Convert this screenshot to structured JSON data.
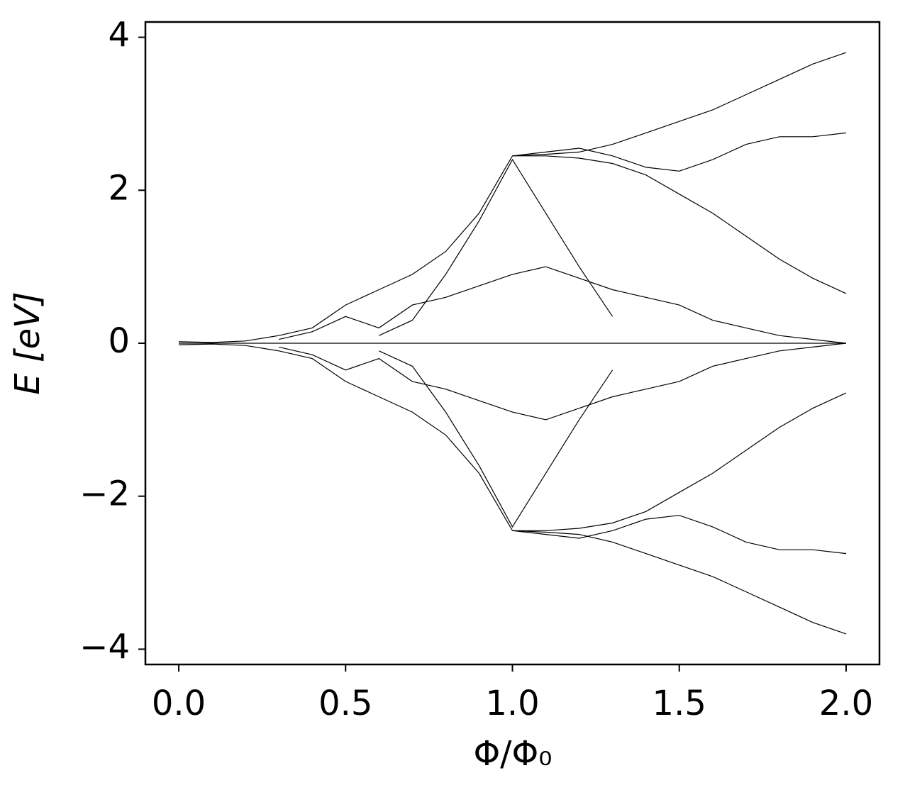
{
  "chart_data": {
    "type": "line",
    "xlabel": "Φ/Φ₀",
    "ylabel": "E [eV]",
    "x": [
      0,
      0.1,
      0.2,
      0.3,
      0.4,
      0.5,
      0.6,
      0.7,
      0.8,
      0.9,
      1.0,
      1.1,
      1.2,
      1.3,
      1.4,
      1.5,
      1.6,
      1.7,
      1.8,
      1.9,
      2.0
    ],
    "series": [
      {
        "color": "#000000",
        "values": [
          0.02,
          0.01,
          0.03,
          0.1,
          0.2,
          0.5,
          0.7,
          0.9,
          1.2,
          1.7,
          2.45,
          2.47,
          2.5,
          2.6,
          2.75,
          2.9,
          3.05,
          3.25,
          3.45,
          3.65,
          3.8
        ]
      },
      {
        "color": "#000000",
        "values": [
          -0.02,
          -0.01,
          -0.03,
          -0.1,
          -0.2,
          -0.5,
          -0.7,
          -0.9,
          -1.2,
          -1.7,
          -2.45,
          -2.47,
          -2.5,
          -2.6,
          -2.75,
          -2.9,
          -3.05,
          -3.25,
          -3.45,
          -3.65,
          -3.8
        ]
      },
      {
        "color": "#000000",
        "values": [
          null,
          null,
          null,
          null,
          null,
          null,
          0.1,
          0.3,
          0.9,
          1.6,
          2.4,
          1.7,
          1.0,
          0.35,
          null,
          null,
          null,
          null,
          null,
          null,
          null
        ]
      },
      {
        "color": "#000000",
        "values": [
          null,
          null,
          null,
          null,
          null,
          null,
          -0.1,
          -0.3,
          -0.9,
          -1.6,
          -2.4,
          -1.7,
          -1.0,
          -0.35,
          null,
          null,
          null,
          null,
          null,
          null,
          null
        ]
      },
      {
        "color": "#000000",
        "values": [
          null,
          null,
          null,
          null,
          null,
          null,
          null,
          null,
          null,
          null,
          2.45,
          2.45,
          2.42,
          2.35,
          2.2,
          1.95,
          1.7,
          1.4,
          1.1,
          0.85,
          0.65
        ]
      },
      {
        "color": "#000000",
        "values": [
          null,
          null,
          null,
          null,
          null,
          null,
          null,
          null,
          null,
          null,
          -2.45,
          -2.45,
          -2.42,
          -2.35,
          -2.2,
          -1.95,
          -1.7,
          -1.4,
          -1.1,
          -0.85,
          -0.65
        ]
      },
      {
        "color": "#000000",
        "values": [
          null,
          null,
          null,
          null,
          null,
          null,
          null,
          null,
          null,
          null,
          2.45,
          2.5,
          2.55,
          2.45,
          2.3,
          2.25,
          2.4,
          2.6,
          2.7,
          2.7,
          2.75
        ]
      },
      {
        "color": "#000000",
        "values": [
          null,
          null,
          null,
          null,
          null,
          null,
          null,
          null,
          null,
          null,
          -2.45,
          -2.5,
          -2.55,
          -2.45,
          -2.3,
          -2.25,
          -2.4,
          -2.6,
          -2.7,
          -2.7,
          -2.75
        ]
      },
      {
        "color": "#000000",
        "values": [
          null,
          null,
          null,
          0.05,
          0.15,
          0.35,
          0.2,
          0.5,
          0.6,
          0.75,
          0.9,
          1.0,
          0.85,
          0.7,
          0.6,
          0.5,
          0.3,
          0.2,
          0.1,
          0.05,
          0
        ]
      },
      {
        "color": "#000000",
        "values": [
          null,
          null,
          null,
          -0.05,
          -0.15,
          -0.35,
          -0.2,
          -0.5,
          -0.6,
          -0.75,
          -0.9,
          -1.0,
          -0.85,
          -0.7,
          -0.6,
          -0.5,
          -0.3,
          -0.2,
          -0.1,
          -0.05,
          0
        ]
      },
      {
        "color": "#000000",
        "values": [
          0,
          0,
          0,
          0,
          0,
          0,
          0,
          0,
          0,
          0,
          0,
          0,
          0,
          0,
          0,
          0,
          0,
          0,
          0,
          0,
          0
        ]
      }
    ],
    "xlim": [
      -0.1,
      2.1
    ],
    "ylim": [
      -4.2,
      4.2
    ],
    "xticks": [
      {
        "value": 0,
        "label": "0.0"
      },
      0.5,
      {
        "value": 1,
        "label": "1.0"
      },
      1.5,
      {
        "value": 2,
        "label": "2.0"
      }
    ],
    "yticks": [
      {
        "value": -4,
        "label": "−4"
      },
      {
        "value": -2,
        "label": "−2"
      },
      0,
      2,
      4
    ],
    "grid": false
  }
}
